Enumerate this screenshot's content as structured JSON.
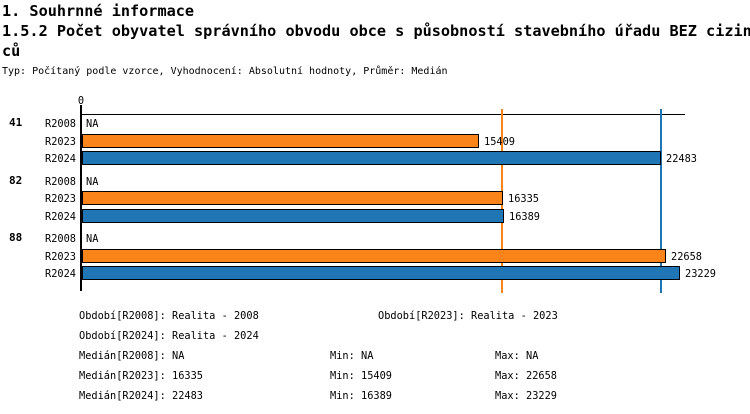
{
  "header": {
    "title": "1. Souhrnné informace",
    "subtitle": "1.5.2 Počet obyvatel správního obvodu obce s působností stavebního úřadu BEZ cizinců",
    "meta": "Typ: Počítaný podle vzorce, Vyhodnocení: Absolutní hodnoty, Průměr: Medián"
  },
  "chart_data": {
    "type": "bar",
    "orientation": "horizontal",
    "x_axis": {
      "origin_label": "0",
      "min": 0,
      "max": 23420,
      "grid": false
    },
    "series_order": [
      "R2008",
      "R2023",
      "R2024"
    ],
    "colors": {
      "R2023": "#fa8419",
      "R2024": "#2076b4"
    },
    "na_label": "NA",
    "groups": [
      {
        "label": "41",
        "values": {
          "R2008": null,
          "R2023": 15409,
          "R2024": 22483
        }
      },
      {
        "label": "82",
        "values": {
          "R2008": null,
          "R2023": 16335,
          "R2024": 16389
        }
      },
      {
        "label": "88",
        "values": {
          "R2008": null,
          "R2023": 22658,
          "R2024": 23229
        }
      }
    ],
    "reference_lines": [
      {
        "series": "R2023",
        "value": 16335,
        "color": "#fa8419"
      },
      {
        "series": "R2024",
        "value": 22483,
        "color": "#2076b4"
      }
    ]
  },
  "legend": {
    "r2008": "Období[R2008]: Realita - 2008",
    "r2023": "Období[R2023]: Realita - 2023",
    "r2024": "Období[R2024]: Realita - 2024"
  },
  "stats": {
    "median_r2008": "Medián[R2008]: NA",
    "min_r2008": "Min: NA",
    "max_r2008": "Max: NA",
    "median_r2023": "Medián[R2023]: 16335",
    "min_r2023": "Min: 15409",
    "max_r2023": "Max: 22658",
    "median_r2024": "Medián[R2024]: 22483",
    "min_r2024": "Min: 16389",
    "max_r2024": "Max: 23229"
  }
}
